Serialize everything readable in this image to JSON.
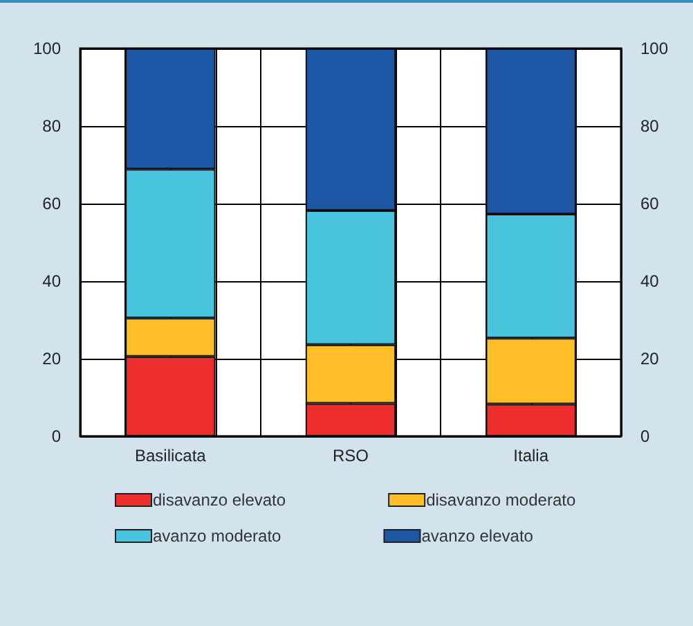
{
  "chart_data": {
    "type": "bar",
    "stacked": true,
    "categories": [
      "Basilicata",
      "RSO",
      "Italia"
    ],
    "series": [
      {
        "name": "disavanzo elevato",
        "color": "#ee2e2e",
        "values": [
          20.6,
          8.5,
          8.3
        ]
      },
      {
        "name": "disavanzo moderato",
        "color": "#fdbe27",
        "values": [
          9.9,
          15.1,
          17
        ]
      },
      {
        "name": "avanzo moderato",
        "color": "#49c4de",
        "values": [
          38.4,
          34.6,
          32
        ]
      },
      {
        "name": "avanzo elevato",
        "color": "#1e56a6",
        "values": [
          31.1,
          41.8,
          42.7
        ]
      }
    ],
    "ylim": [
      0,
      100
    ],
    "yticks": [
      0,
      20,
      40,
      60,
      80,
      100
    ],
    "y2lim": [
      0,
      100
    ],
    "y2ticks": [
      0,
      20,
      40,
      60,
      80,
      100
    ],
    "grid": true,
    "legend": "bottom"
  }
}
